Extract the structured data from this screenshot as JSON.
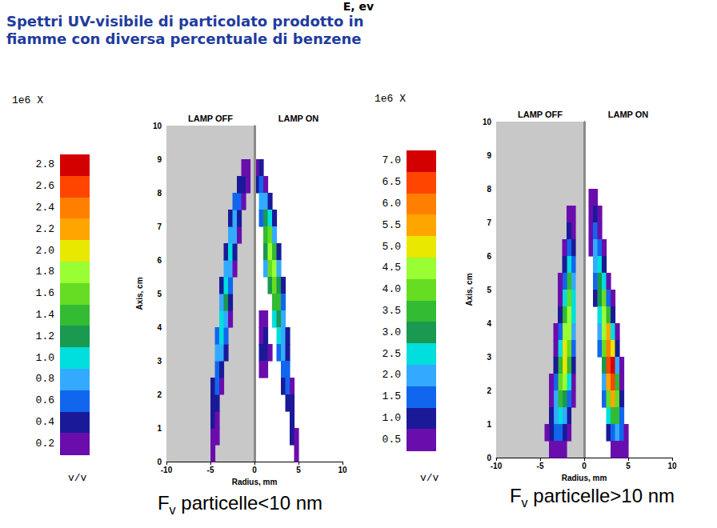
{
  "header": {
    "cut_text": "E, ev",
    "title_lines": [
      "Spettri UV-visibile di particolato prodotto in",
      "fiamme con diversa percentuale di benzene"
    ]
  },
  "chart_data": [
    {
      "type": "heatmap",
      "xlabel": "Radius, mm",
      "ylabel": "Axis, cm",
      "xlim": [
        -10,
        10
      ],
      "ylim": [
        0,
        10
      ],
      "xticks": [
        -10,
        -5,
        0,
        5,
        10
      ],
      "yticks": [
        0,
        1,
        2,
        3,
        4,
        5,
        6,
        7,
        8,
        9,
        10
      ],
      "regions": [
        {
          "label": "LAMP OFF",
          "x": [
            -10,
            0
          ],
          "color": "#c8c8c8"
        },
        {
          "label": "LAMP ON",
          "x": [
            0,
            10
          ],
          "color": "#ffffff"
        }
      ],
      "caption": {
        "symbol": "F",
        "subscript": "v",
        "text": " particelle<10 nm"
      },
      "colorbar": {
        "header": "1e6 X",
        "unit": "v/v",
        "levels": [
          0.2,
          0.4,
          0.6,
          0.8,
          {
            "value": 1.0,
            "label": "1.0"
          },
          1.2,
          1.4,
          1.6,
          1.8,
          {
            "value": 2.0,
            "label": "2.0"
          },
          2.2,
          2.4,
          2.6,
          2.8
        ],
        "colors": [
          "#6a0dad",
          "#1a1a99",
          "#1166ee",
          "#33aaff",
          "#00dede",
          "#1a9950",
          "#33bb33",
          "#66dd22",
          "#99ff33",
          "#e8e800",
          "#ffa500",
          "#ff7f00",
          "#ff4500",
          "#d40000"
        ]
      },
      "cell_size": [
        0.5,
        0.5
      ],
      "cells": [
        [
          -4.75,
          0.25,
          0.2
        ],
        [
          -4.75,
          0.75,
          0.3
        ],
        [
          -4.25,
          0.75,
          0.2
        ],
        [
          -4.75,
          1.25,
          0.4
        ],
        [
          -4.25,
          1.25,
          0.3
        ],
        [
          -4.75,
          1.75,
          0.5
        ],
        [
          -4.25,
          1.75,
          0.4
        ],
        [
          -4.75,
          2.25,
          0.4
        ],
        [
          -4.25,
          2.25,
          0.6
        ],
        [
          -3.75,
          2.25,
          0.3
        ],
        [
          -4.25,
          2.75,
          0.7
        ],
        [
          -3.75,
          2.75,
          0.5
        ],
        [
          -4.25,
          3.25,
          0.8
        ],
        [
          -3.75,
          3.25,
          0.9
        ],
        [
          -3.25,
          3.25,
          0.4
        ],
        [
          -4.25,
          3.75,
          0.6
        ],
        [
          -3.75,
          3.75,
          1.0
        ],
        [
          -3.25,
          3.75,
          0.6
        ],
        [
          -3.75,
          4.25,
          1.1
        ],
        [
          -3.25,
          4.25,
          0.8
        ],
        [
          -2.75,
          4.25,
          0.3
        ],
        [
          -3.75,
          4.75,
          0.8
        ],
        [
          -3.25,
          4.75,
          1.2
        ],
        [
          -2.75,
          4.75,
          0.5
        ],
        [
          -3.75,
          5.25,
          0.4
        ],
        [
          -3.25,
          5.25,
          1.0
        ],
        [
          -2.75,
          5.25,
          0.7
        ],
        [
          -3.25,
          5.75,
          0.8
        ],
        [
          -2.75,
          5.75,
          0.9
        ],
        [
          -2.25,
          5.75,
          0.3
        ],
        [
          -3.25,
          6.25,
          0.5
        ],
        [
          -2.75,
          6.25,
          1.0
        ],
        [
          -2.25,
          6.25,
          0.5
        ],
        [
          -2.75,
          6.75,
          0.9
        ],
        [
          -2.25,
          6.75,
          0.8
        ],
        [
          -1.75,
          6.75,
          0.3
        ],
        [
          -2.75,
          7.25,
          0.5
        ],
        [
          -2.25,
          7.25,
          0.9
        ],
        [
          -1.75,
          7.25,
          0.5
        ],
        [
          -2.25,
          7.75,
          0.6
        ],
        [
          -1.75,
          7.75,
          0.7
        ],
        [
          -1.25,
          7.75,
          0.3
        ],
        [
          -1.75,
          8.25,
          0.5
        ],
        [
          -1.25,
          8.25,
          0.5
        ],
        [
          -0.75,
          8.25,
          0.3
        ],
        [
          -1.25,
          8.75,
          0.3
        ],
        [
          -0.75,
          8.75,
          0.3
        ],
        [
          0.25,
          8.75,
          0.3
        ],
        [
          0.75,
          8.75,
          0.4
        ],
        [
          0.25,
          8.25,
          0.4
        ],
        [
          0.75,
          8.25,
          0.6
        ],
        [
          1.25,
          8.25,
          0.3
        ],
        [
          0.75,
          7.75,
          0.8
        ],
        [
          1.25,
          7.75,
          0.9
        ],
        [
          1.75,
          7.75,
          0.5
        ],
        [
          0.75,
          7.25,
          0.6
        ],
        [
          1.25,
          7.25,
          1.2
        ],
        [
          1.75,
          7.25,
          1.0
        ],
        [
          2.25,
          7.25,
          0.4
        ],
        [
          1.25,
          6.75,
          1.4
        ],
        [
          1.75,
          6.75,
          1.6
        ],
        [
          2.25,
          6.75,
          0.8
        ],
        [
          1.25,
          6.25,
          1.2
        ],
        [
          1.75,
          6.25,
          1.8
        ],
        [
          2.25,
          6.25,
          1.4
        ],
        [
          2.75,
          6.25,
          0.4
        ],
        [
          1.25,
          5.75,
          0.8
        ],
        [
          1.75,
          5.75,
          1.6
        ],
        [
          2.25,
          5.75,
          1.8
        ],
        [
          2.75,
          5.75,
          0.8
        ],
        [
          1.75,
          5.25,
          1.2
        ],
        [
          2.25,
          5.25,
          1.6
        ],
        [
          2.75,
          5.25,
          1.2
        ],
        [
          3.25,
          5.25,
          0.4
        ],
        [
          2.25,
          4.75,
          1.4
        ],
        [
          2.75,
          4.75,
          1.4
        ],
        [
          3.25,
          4.75,
          0.6
        ],
        [
          2.25,
          4.25,
          1.0
        ],
        [
          2.75,
          4.25,
          1.2
        ],
        [
          3.25,
          4.25,
          0.8
        ],
        [
          2.75,
          3.75,
          1.0
        ],
        [
          3.25,
          3.75,
          0.9
        ],
        [
          3.75,
          3.75,
          0.4
        ],
        [
          2.75,
          3.25,
          0.6
        ],
        [
          3.25,
          3.25,
          0.8
        ],
        [
          3.75,
          3.25,
          0.5
        ],
        [
          3.25,
          2.75,
          0.6
        ],
        [
          3.75,
          2.75,
          0.6
        ],
        [
          3.25,
          2.25,
          0.4
        ],
        [
          3.75,
          2.25,
          0.6
        ],
        [
          4.25,
          2.25,
          0.3
        ],
        [
          3.75,
          1.75,
          0.5
        ],
        [
          4.25,
          1.75,
          0.4
        ],
        [
          4.25,
          1.25,
          0.5
        ],
        [
          4.25,
          0.75,
          0.4
        ],
        [
          4.75,
          0.75,
          0.3
        ],
        [
          4.75,
          0.25,
          0.2
        ],
        [
          0.75,
          4.25,
          0.2
        ],
        [
          1.25,
          4.25,
          0.3
        ],
        [
          0.75,
          3.75,
          0.3
        ],
        [
          1.25,
          3.75,
          0.4
        ],
        [
          0.75,
          3.25,
          0.4
        ],
        [
          1.25,
          3.25,
          0.5
        ],
        [
          1.75,
          3.25,
          0.3
        ],
        [
          0.75,
          2.75,
          0.3
        ],
        [
          1.25,
          2.75,
          0.3
        ]
      ]
    },
    {
      "type": "heatmap",
      "xlabel": "Radius, mm",
      "ylabel": "Axis, cm",
      "xlim": [
        -10,
        10
      ],
      "ylim": [
        0,
        10
      ],
      "xticks": [
        -10,
        -5,
        0,
        5,
        10
      ],
      "yticks": [
        0,
        1,
        2,
        3,
        4,
        5,
        6,
        7,
        8,
        9,
        10
      ],
      "regions": [
        {
          "label": "LAMP OFF",
          "x": [
            -10,
            0
          ],
          "color": "#c8c8c8"
        },
        {
          "label": "LAMP ON",
          "x": [
            0,
            10
          ],
          "color": "#ffffff"
        }
      ],
      "caption": {
        "symbol": "F",
        "subscript": "v",
        "text": " particelle>10 nm"
      },
      "colorbar": {
        "header": "1e6 X",
        "unit": "v/v",
        "levels": [
          0.5,
          {
            "value": 1.0,
            "label": "1.0"
          },
          1.5,
          {
            "value": 2.0,
            "label": "2.0"
          },
          2.5,
          {
            "value": 3.0,
            "label": "3.0"
          },
          3.5,
          {
            "value": 4.0,
            "label": "4.0"
          },
          4.5,
          {
            "value": 5.0,
            "label": "5.0"
          },
          5.5,
          {
            "value": 6.0,
            "label": "6.0"
          },
          6.5,
          {
            "value": 7.0,
            "label": "7.0"
          }
        ],
        "colors": [
          "#6a0dad",
          "#1a1a99",
          "#1166ee",
          "#33aaff",
          "#00dede",
          "#1a9950",
          "#33bb33",
          "#66dd22",
          "#99ff33",
          "#e8e800",
          "#ffa500",
          "#ff7f00",
          "#ff4500",
          "#d40000"
        ]
      },
      "cell_size": [
        0.5,
        0.5
      ],
      "cells": [
        [
          -1.25,
          7.25,
          0.6
        ],
        [
          -1.75,
          7.25,
          0.6
        ],
        [
          -1.25,
          6.75,
          0.8
        ],
        [
          -1.75,
          6.75,
          1.0
        ],
        [
          -1.25,
          6.25,
          1.2
        ],
        [
          -1.75,
          6.25,
          1.5
        ],
        [
          -2.25,
          6.25,
          0.6
        ],
        [
          -1.25,
          5.75,
          1.5
        ],
        [
          -1.75,
          5.75,
          2.5
        ],
        [
          -2.25,
          5.75,
          1.0
        ],
        [
          -1.25,
          5.25,
          2.0
        ],
        [
          -1.75,
          5.25,
          3.5
        ],
        [
          -2.25,
          5.25,
          1.5
        ],
        [
          -2.75,
          5.25,
          0.5
        ],
        [
          -1.25,
          4.75,
          2.5
        ],
        [
          -1.75,
          4.75,
          4.0
        ],
        [
          -2.25,
          4.75,
          2.5
        ],
        [
          -2.75,
          4.75,
          0.8
        ],
        [
          -1.25,
          4.25,
          2.5
        ],
        [
          -1.75,
          4.25,
          4.5
        ],
        [
          -2.25,
          4.25,
          3.5
        ],
        [
          -2.75,
          4.25,
          1.0
        ],
        [
          -1.25,
          3.75,
          2.0
        ],
        [
          -1.75,
          3.75,
          4.5
        ],
        [
          -2.25,
          3.75,
          4.5
        ],
        [
          -2.75,
          3.75,
          1.5
        ],
        [
          -3.25,
          3.75,
          0.5
        ],
        [
          -1.25,
          3.25,
          1.5
        ],
        [
          -1.75,
          3.25,
          4.0
        ],
        [
          -2.25,
          3.25,
          5.0
        ],
        [
          -2.75,
          3.25,
          2.5
        ],
        [
          -3.25,
          3.25,
          0.8
        ],
        [
          -1.25,
          2.75,
          1.0
        ],
        [
          -1.75,
          2.75,
          3.5
        ],
        [
          -2.25,
          2.75,
          5.0
        ],
        [
          -2.75,
          2.75,
          3.5
        ],
        [
          -3.25,
          2.75,
          1.0
        ],
        [
          -1.25,
          2.25,
          0.8
        ],
        [
          -1.75,
          2.25,
          2.5
        ],
        [
          -2.25,
          2.25,
          4.5
        ],
        [
          -2.75,
          2.25,
          4.0
        ],
        [
          -3.25,
          2.25,
          1.5
        ],
        [
          -3.75,
          2.25,
          0.5
        ],
        [
          -1.25,
          1.75,
          0.6
        ],
        [
          -1.75,
          1.75,
          1.5
        ],
        [
          -2.25,
          1.75,
          3.0
        ],
        [
          -2.75,
          1.75,
          3.5
        ],
        [
          -3.25,
          1.75,
          2.0
        ],
        [
          -3.75,
          1.75,
          0.8
        ],
        [
          -1.75,
          1.25,
          1.0
        ],
        [
          -2.25,
          1.25,
          2.0
        ],
        [
          -2.75,
          1.25,
          2.5
        ],
        [
          -3.25,
          1.25,
          2.0
        ],
        [
          -3.75,
          1.25,
          1.0
        ],
        [
          -1.75,
          0.75,
          0.6
        ],
        [
          -2.25,
          0.75,
          1.0
        ],
        [
          -2.75,
          0.75,
          1.5
        ],
        [
          -3.25,
          0.75,
          1.5
        ],
        [
          -3.75,
          0.75,
          1.0
        ],
        [
          -4.25,
          0.75,
          0.5
        ],
        [
          -2.25,
          0.25,
          0.5
        ],
        [
          -2.75,
          0.25,
          0.6
        ],
        [
          -3.25,
          0.25,
          0.6
        ],
        [
          -3.75,
          0.25,
          0.6
        ],
        [
          0.75,
          7.75,
          0.6
        ],
        [
          1.25,
          7.75,
          0.6
        ],
        [
          0.75,
          7.25,
          0.8
        ],
        [
          1.25,
          7.25,
          1.0
        ],
        [
          1.75,
          7.25,
          0.5
        ],
        [
          0.75,
          6.75,
          0.8
        ],
        [
          1.25,
          6.75,
          1.5
        ],
        [
          1.75,
          6.75,
          0.8
        ],
        [
          0.75,
          6.25,
          0.8
        ],
        [
          1.25,
          6.25,
          2.0
        ],
        [
          1.75,
          6.25,
          1.5
        ],
        [
          2.25,
          6.25,
          0.6
        ],
        [
          1.25,
          5.75,
          2.0
        ],
        [
          1.75,
          5.75,
          2.5
        ],
        [
          2.25,
          5.75,
          1.0
        ],
        [
          1.25,
          5.25,
          1.5
        ],
        [
          1.75,
          5.25,
          3.0
        ],
        [
          2.25,
          5.25,
          2.5
        ],
        [
          2.75,
          5.25,
          0.8
        ],
        [
          1.25,
          4.75,
          1.0
        ],
        [
          1.75,
          4.75,
          3.0
        ],
        [
          2.25,
          4.75,
          4.0
        ],
        [
          2.75,
          4.75,
          1.5
        ],
        [
          3.25,
          4.75,
          0.5
        ],
        [
          1.75,
          4.25,
          2.5
        ],
        [
          2.25,
          4.25,
          4.5
        ],
        [
          2.75,
          4.25,
          3.5
        ],
        [
          3.25,
          4.25,
          1.0
        ],
        [
          1.75,
          3.75,
          2.0
        ],
        [
          2.25,
          3.75,
          4.5
        ],
        [
          2.75,
          3.75,
          5.5
        ],
        [
          3.25,
          3.75,
          2.5
        ],
        [
          3.75,
          3.75,
          0.6
        ],
        [
          1.75,
          3.25,
          1.5
        ],
        [
          2.25,
          3.25,
          4.0
        ],
        [
          2.75,
          3.25,
          6.0
        ],
        [
          3.25,
          3.25,
          5.0
        ],
        [
          3.75,
          3.25,
          1.0
        ],
        [
          2.25,
          2.75,
          3.0
        ],
        [
          2.75,
          2.75,
          6.5
        ],
        [
          3.25,
          2.75,
          7.0
        ],
        [
          3.75,
          2.75,
          2.0
        ],
        [
          4.25,
          2.75,
          0.5
        ],
        [
          2.25,
          2.25,
          2.0
        ],
        [
          2.75,
          2.25,
          5.5
        ],
        [
          3.25,
          2.25,
          6.5
        ],
        [
          3.75,
          2.25,
          3.5
        ],
        [
          4.25,
          2.25,
          0.8
        ],
        [
          2.25,
          1.75,
          1.5
        ],
        [
          2.75,
          1.75,
          4.0
        ],
        [
          3.25,
          1.75,
          5.5
        ],
        [
          3.75,
          1.75,
          4.0
        ],
        [
          4.25,
          1.75,
          1.0
        ],
        [
          2.75,
          1.25,
          2.5
        ],
        [
          3.25,
          1.25,
          3.5
        ],
        [
          3.75,
          1.25,
          3.5
        ],
        [
          4.25,
          1.25,
          1.5
        ],
        [
          2.75,
          0.75,
          1.0
        ],
        [
          3.25,
          0.75,
          1.5
        ],
        [
          3.75,
          0.75,
          2.0
        ],
        [
          4.25,
          0.75,
          1.5
        ],
        [
          4.75,
          0.75,
          0.5
        ],
        [
          3.25,
          0.25,
          0.5
        ],
        [
          3.75,
          0.25,
          0.8
        ],
        [
          4.25,
          0.25,
          0.8
        ],
        [
          4.75,
          0.25,
          0.5
        ]
      ]
    }
  ]
}
